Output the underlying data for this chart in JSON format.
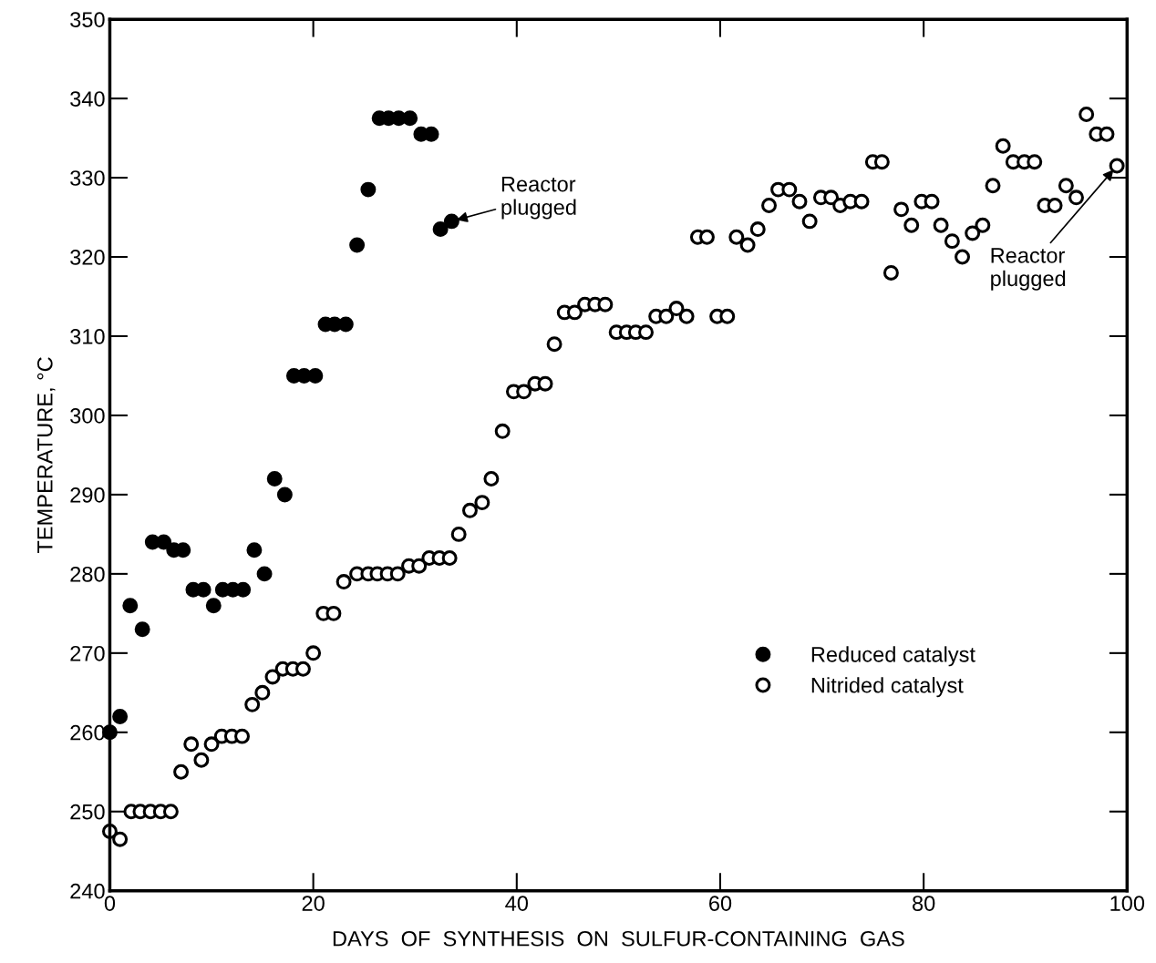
{
  "chart_data": {
    "type": "scatter",
    "xlabel": "DAYS  OF  SYNTHESIS  ON  SULFUR-CONTAINING  GAS",
    "ylabel": "TEMPERATURE, °C",
    "xlim": [
      0,
      100
    ],
    "xticks": [
      0,
      20,
      40,
      60,
      80,
      100
    ],
    "ylim": [
      240,
      350
    ],
    "yticks": [
      240,
      250,
      260,
      270,
      280,
      290,
      300,
      310,
      320,
      330,
      340,
      350
    ],
    "grid": false,
    "legend": "lower right",
    "marker": "circle",
    "series": [
      {
        "name": "Reduced catalyst",
        "color": "#000000",
        "x": [
          0,
          1,
          2,
          3.2,
          4.2,
          5.3,
          6.3,
          7.2,
          8.2,
          9.2,
          10.2,
          11.1,
          12.1,
          13.1,
          14.2,
          15.2,
          16.2,
          17.2,
          18.1,
          19.1,
          20.2,
          21.2,
          22.1,
          23.2,
          24.3,
          25.4,
          26.5,
          27.4,
          28.4,
          29.5,
          30.6,
          31.6,
          32.5,
          33.6
        ],
        "values": [
          260,
          262,
          276,
          273,
          284,
          284,
          283,
          283,
          278,
          278,
          276,
          278,
          278,
          278,
          283,
          280,
          292,
          290,
          305,
          305,
          305,
          311.5,
          311.5,
          311.5,
          321.5,
          328.5,
          337.5,
          337.5,
          337.5,
          337.5,
          335.5,
          335.5,
          323.5,
          324.5
        ]
      },
      {
        "name": "Nitrided catalyst",
        "color": "#000000",
        "x": [
          0,
          1,
          2.1,
          3,
          4,
          5,
          6,
          7,
          8,
          9,
          10,
          11,
          12,
          13,
          14,
          15,
          16,
          17,
          18,
          19,
          20,
          21,
          22,
          23,
          24.3,
          25.4,
          26.3,
          27.3,
          28.3,
          29.4,
          30.4,
          31.4,
          32.4,
          33.4,
          34.3,
          35.4,
          36.6,
          37.5,
          38.6,
          39.7,
          40.7,
          41.8,
          42.8,
          43.7,
          44.7,
          45.7,
          46.7,
          47.7,
          48.7,
          49.8,
          50.8,
          51.7,
          52.7,
          53.7,
          54.7,
          55.7,
          56.7,
          57.8,
          58.7,
          59.7,
          60.7,
          61.6,
          62.7,
          63.7,
          64.8,
          65.7,
          66.8,
          67.8,
          68.8,
          69.9,
          70.9,
          71.8,
          72.8,
          73.9,
          75,
          75.9,
          76.8,
          77.8,
          78.8,
          79.8,
          80.8,
          81.7,
          82.8,
          83.8,
          84.8,
          85.8,
          86.8,
          87.8,
          88.8,
          89.9,
          90.9,
          91.9,
          92.9,
          94,
          95,
          96,
          97,
          98,
          99
        ],
        "values": [
          247.5,
          246.5,
          250,
          250,
          250,
          250,
          250,
          255,
          258.5,
          256.5,
          258.5,
          259.5,
          259.5,
          259.5,
          263.5,
          265,
          267,
          268,
          268,
          268,
          270,
          275,
          275,
          279,
          280,
          280,
          280,
          280,
          280,
          281,
          281,
          282,
          282,
          282,
          285,
          288,
          289,
          292,
          298,
          303,
          303,
          304,
          304,
          309,
          313,
          313,
          314,
          314,
          314,
          310.5,
          310.5,
          310.5,
          310.5,
          312.5,
          312.5,
          313.5,
          312.5,
          322.5,
          322.5,
          312.5,
          312.5,
          322.5,
          321.5,
          323.5,
          326.5,
          328.5,
          328.5,
          327,
          324.5,
          327.5,
          327.5,
          326.5,
          327,
          327,
          332,
          332,
          318,
          326,
          324,
          327,
          327,
          324,
          322,
          320,
          323,
          324,
          329,
          334,
          332,
          332,
          332,
          326.5,
          326.5,
          329,
          327.5,
          338,
          335.5,
          335.5,
          331.5
        ]
      }
    ],
    "annotations": [
      {
        "text": "Reactor\nplugged",
        "x": 33.6,
        "y": 324.5
      },
      {
        "text": "Reactor\nplugged",
        "x": 99,
        "y": 331.5
      }
    ]
  }
}
